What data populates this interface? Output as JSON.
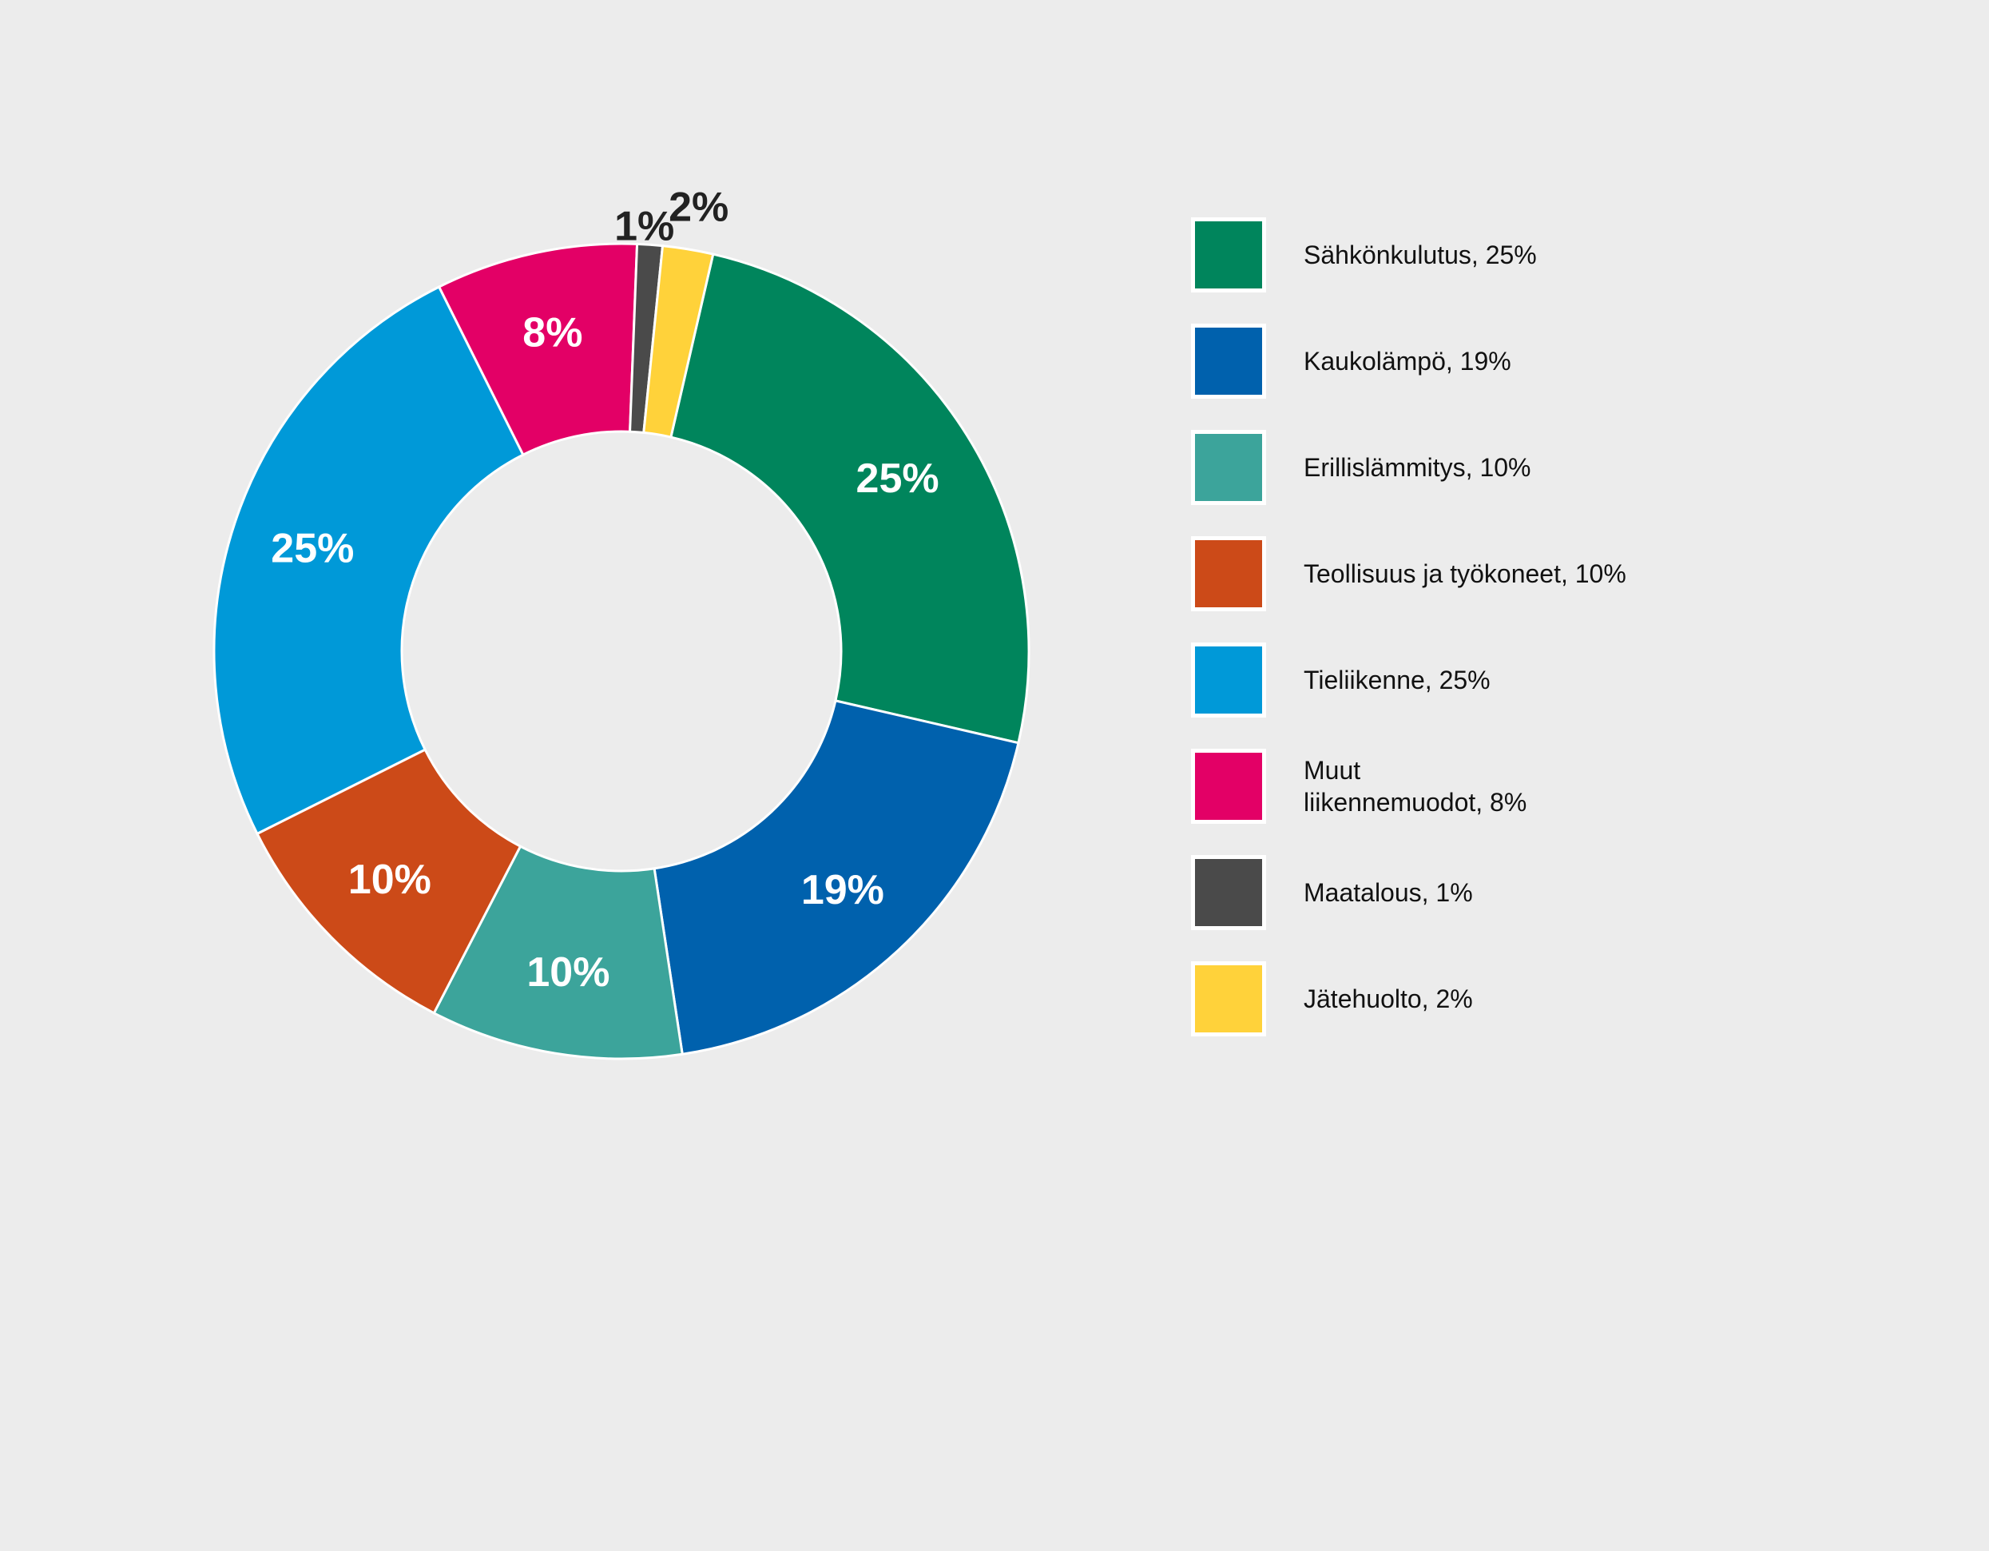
{
  "chart_data": {
    "type": "pie",
    "donut": true,
    "title": "",
    "slices": [
      {
        "label": "Sähkönkulutus, 25%",
        "value": 25,
        "value_label": "25%",
        "color": "#00855c",
        "label_inside": true
      },
      {
        "label": "Kaukolämpö, 19%",
        "value": 19,
        "value_label": "19%",
        "color": "#0061ad",
        "label_inside": true
      },
      {
        "label": "Erillislämmitys, 10%",
        "value": 10,
        "value_label": "10%",
        "color": "#3ca49b",
        "label_inside": true
      },
      {
        "label": "Teollisuus ja työkoneet, 10%",
        "value": 10,
        "value_label": "10%",
        "color": "#cc4a18",
        "label_inside": true
      },
      {
        "label": "Tieliikenne, 25%",
        "value": 25,
        "value_label": "25%",
        "color": "#0099d8",
        "label_inside": true
      },
      {
        "label": "Muut\nliikennemuodot, 8%",
        "value": 8,
        "value_label": "8%",
        "color": "#e30066",
        "label_inside": true
      },
      {
        "label": "Maatalous, 1%",
        "value": 1,
        "value_label": "1%",
        "color": "#4a4a4a",
        "label_inside": false
      },
      {
        "label": "Jätehuolto, 2%",
        "value": 2,
        "value_label": "2%",
        "color": "#ffd23a",
        "label_inside": false
      }
    ],
    "legend_position": "right"
  }
}
